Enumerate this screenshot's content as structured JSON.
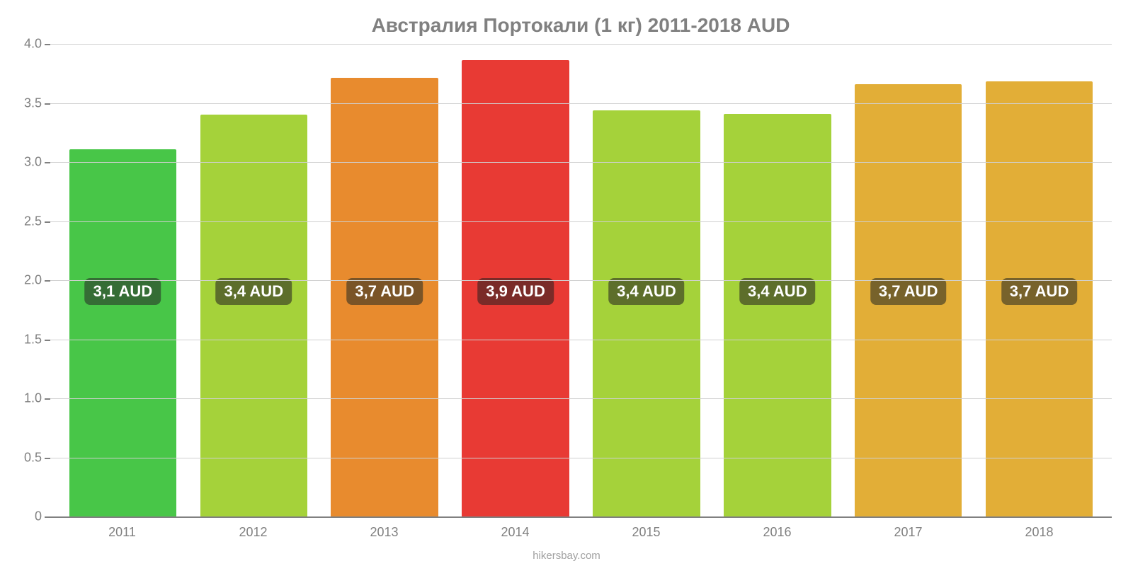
{
  "chart": {
    "type": "bar",
    "title": "Австралия Портокали (1 кг) 2011-2018 AUD",
    "title_color": "#808080",
    "title_fontsize": 28,
    "background_color": "#ffffff",
    "grid_color": "#d0d0d0",
    "axis_color": "#808080",
    "tick_fontsize": 18,
    "tick_color": "#808080",
    "bar_width_ratio": 0.82,
    "y": {
      "min": 0,
      "max": 4.0,
      "ticks": [
        0,
        0.5,
        1.0,
        1.5,
        2.0,
        2.5,
        3.0,
        3.5,
        4.0
      ],
      "tick_labels": [
        "0",
        "0.5",
        "1.0",
        "1.5",
        "2.0",
        "2.5",
        "3.0",
        "3.5",
        "4.0"
      ]
    },
    "data": [
      {
        "year": "2011",
        "value": 3.11,
        "label": "3,1 AUD",
        "bar_color": "#48c648",
        "label_bg": "#356d35"
      },
      {
        "year": "2012",
        "value": 3.4,
        "label": "3,4 AUD",
        "bar_color": "#a5d23a",
        "label_bg": "#5d6e2b"
      },
      {
        "year": "2013",
        "value": 3.71,
        "label": "3,7 AUD",
        "bar_color": "#e88b2e",
        "label_bg": "#7a5427"
      },
      {
        "year": "2014",
        "value": 3.86,
        "label": "3,9 AUD",
        "bar_color": "#e83a34",
        "label_bg": "#7a2b28"
      },
      {
        "year": "2015",
        "value": 3.44,
        "label": "3,4 AUD",
        "bar_color": "#a5d23a",
        "label_bg": "#5d6e2b"
      },
      {
        "year": "2016",
        "value": 3.41,
        "label": "3,4 AUD",
        "bar_color": "#a5d23a",
        "label_bg": "#5d6e2b"
      },
      {
        "year": "2017",
        "value": 3.66,
        "label": "3,7 AUD",
        "bar_color": "#e2ae37",
        "label_bg": "#77622b"
      },
      {
        "year": "2018",
        "value": 3.68,
        "label": "3,7 AUD",
        "bar_color": "#e2ae37",
        "label_bg": "#77622b"
      }
    ],
    "bar_label_fontsize": 22,
    "bar_label_text_color": "#ffffff",
    "footer": "hikersbay.com",
    "footer_color": "#a0a0a0",
    "footer_fontsize": 15,
    "label_vertical_center": 1.9
  }
}
